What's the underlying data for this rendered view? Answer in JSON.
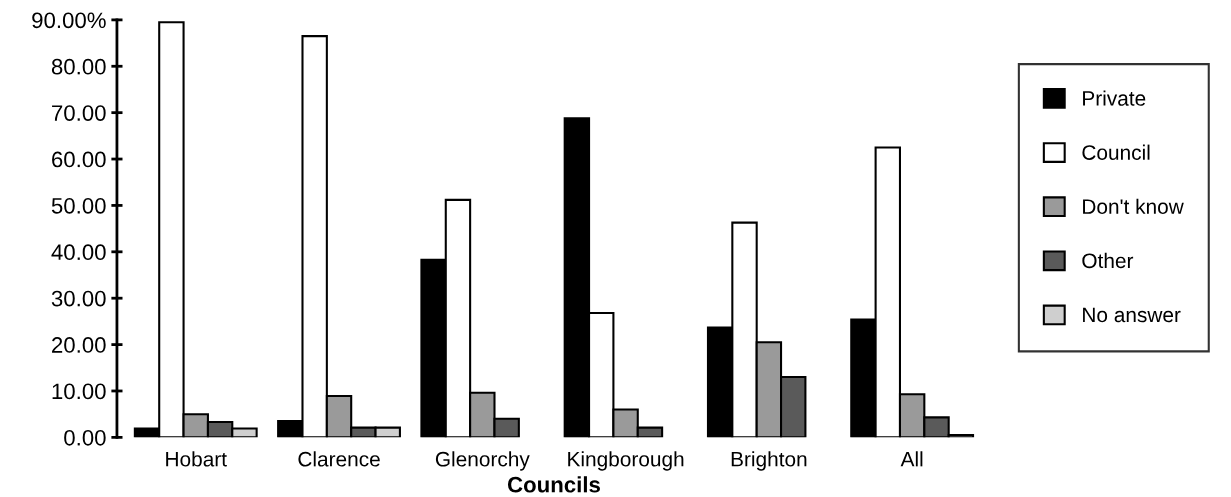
{
  "chart_data": {
    "type": "bar",
    "xlabel": "Councils",
    "categories": [
      "Hobart",
      "Clarence",
      "Glenorchy",
      "Kingborough",
      "Brighton",
      "All"
    ],
    "series": [
      {
        "name": "Private",
        "color": "#000000",
        "values": [
          1.9,
          3.5,
          38.3,
          68.8,
          23.7,
          25.4
        ]
      },
      {
        "name": "Council",
        "color": "#ffffff",
        "values": [
          89.5,
          86.5,
          51.2,
          26.8,
          46.3,
          62.5
        ]
      },
      {
        "name": "Don't know",
        "color": "#9a9a9a",
        "values": [
          5.0,
          8.9,
          9.6,
          6.0,
          20.5,
          9.3
        ]
      },
      {
        "name": "Other",
        "color": "#5a5a5a",
        "values": [
          3.3,
          2.1,
          4.0,
          2.1,
          13.0,
          4.3
        ]
      },
      {
        "name": "No answer",
        "color": "#cfcfcf",
        "values": [
          1.9,
          2.1,
          null,
          null,
          null,
          0.5
        ]
      }
    ],
    "ylim": [
      0,
      90
    ],
    "yticks": [
      {
        "value": 0,
        "label": "0.00"
      },
      {
        "value": 10,
        "label": "10.00"
      },
      {
        "value": 20,
        "label": "20.00"
      },
      {
        "value": 30,
        "label": "30.00"
      },
      {
        "value": 40,
        "label": "40.00"
      },
      {
        "value": 50,
        "label": "50.00"
      },
      {
        "value": 60,
        "label": "60.00"
      },
      {
        "value": 70,
        "label": "70.00"
      },
      {
        "value": 80,
        "label": "80.00"
      },
      {
        "value": 90,
        "label": "90.00%"
      }
    ],
    "grid": false,
    "legend": "right"
  }
}
